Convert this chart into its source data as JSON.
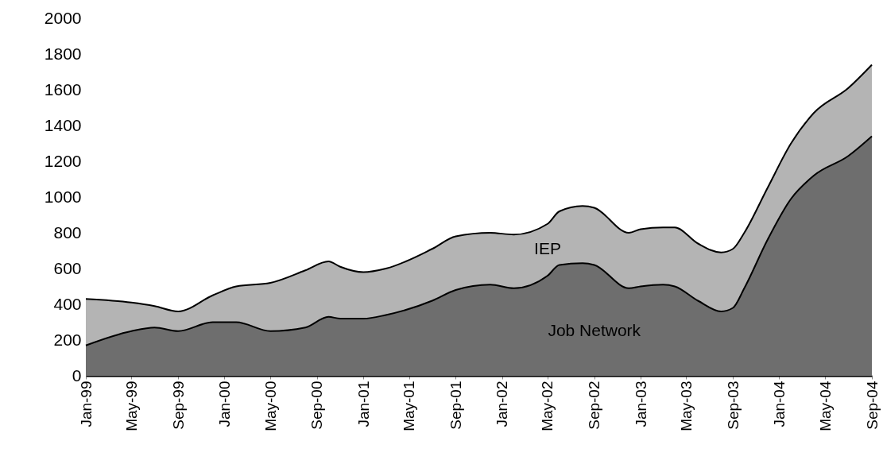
{
  "chart_data": {
    "type": "area",
    "stacked": true,
    "x": [
      "1999-01",
      "1999-05",
      "1999-07",
      "1999-09",
      "1999-12",
      "2000-02",
      "2000-05",
      "2000-08",
      "2000-10",
      "2000-11",
      "2001-01",
      "2001-03",
      "2001-07",
      "2001-09",
      "2001-12",
      "2002-02",
      "2002-05",
      "2002-06",
      "2002-08",
      "2002-09",
      "2002-12",
      "2003-01",
      "2003-03",
      "2003-04",
      "2003-06",
      "2003-08",
      "2003-09",
      "2003-10",
      "2003-12",
      "2004-02",
      "2004-04",
      "2004-07",
      "2004-09"
    ],
    "series": [
      {
        "name": "Job Network",
        "color": "#6e6e6e",
        "values": [
          170,
          250,
          270,
          250,
          300,
          300,
          250,
          270,
          330,
          320,
          320,
          340,
          420,
          480,
          510,
          490,
          560,
          620,
          630,
          620,
          490,
          500,
          510,
          500,
          420,
          360,
          380,
          490,
          760,
          990,
          1120,
          1230,
          1340
        ]
      },
      {
        "name": "IEP",
        "color": "#b4b4b4",
        "values": [
          260,
          160,
          120,
          110,
          150,
          200,
          270,
          320,
          310,
          290,
          260,
          260,
          290,
          300,
          290,
          300,
          290,
          300,
          320,
          320,
          310,
          320,
          320,
          330,
          320,
          330,
          330,
          310,
          290,
          310,
          350,
          380,
          400
        ]
      }
    ],
    "xlim": [
      "1999-01",
      "2004-09"
    ],
    "xticks": [
      {
        "value": "1999-01",
        "label": "Jan-99"
      },
      {
        "value": "1999-05",
        "label": "May-99"
      },
      {
        "value": "1999-09",
        "label": "Sep-99"
      },
      {
        "value": "2000-01",
        "label": "Jan-00"
      },
      {
        "value": "2000-05",
        "label": "May-00"
      },
      {
        "value": "2000-09",
        "label": "Sep-00"
      },
      {
        "value": "2001-01",
        "label": "Jan-01"
      },
      {
        "value": "2001-05",
        "label": "May-01"
      },
      {
        "value": "2001-09",
        "label": "Sep-01"
      },
      {
        "value": "2002-01",
        "label": "Jan-02"
      },
      {
        "value": "2002-05",
        "label": "May-02"
      },
      {
        "value": "2002-09",
        "label": "Sep-02"
      },
      {
        "value": "2003-01",
        "label": "Jan-03"
      },
      {
        "value": "2003-05",
        "label": "May-03"
      },
      {
        "value": "2003-09",
        "label": "Sep-03"
      },
      {
        "value": "2004-01",
        "label": "Jan-04"
      },
      {
        "value": "2004-05",
        "label": "May-04"
      },
      {
        "value": "2004-09",
        "label": "Sep-04"
      }
    ],
    "ylim": [
      0,
      2000
    ],
    "yticks": [
      0,
      200,
      400,
      600,
      800,
      1000,
      1200,
      1400,
      1600,
      1800,
      2000
    ],
    "legend": false
  }
}
